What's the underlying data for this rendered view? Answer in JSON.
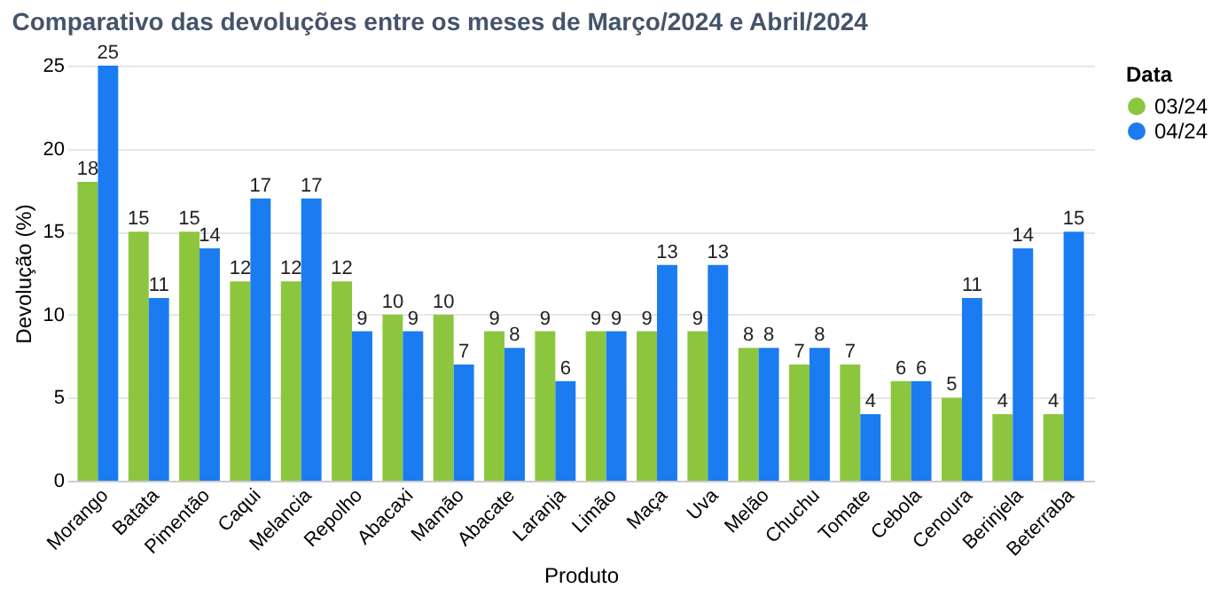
{
  "chart_data": {
    "type": "bar",
    "title": "Comparativo das devoluções entre os meses de Março/2024 e Abril/2024",
    "xlabel": "Produto",
    "ylabel": "Devolução (%)",
    "legend_title": "Data",
    "categories": [
      "Morango",
      "Batata",
      "Pimentão",
      "Caqui",
      "Melancia",
      "Repolho",
      "Abacaxi",
      "Mamão",
      "Abacate",
      "Laranja",
      "Limão",
      "Maça",
      "Uva",
      "Melão",
      "Chuchu",
      "Tomate",
      "Cebola",
      "Cenoura",
      "Berinjela",
      "Beterraba"
    ],
    "series": [
      {
        "name": "03/24",
        "color": "#8cc63f",
        "values": [
          18,
          15,
          15,
          12,
          12,
          12,
          10,
          10,
          9,
          9,
          9,
          9,
          9,
          8,
          7,
          7,
          6,
          5,
          4,
          4
        ]
      },
      {
        "name": "04/24",
        "color": "#1a7cf0",
        "values": [
          25,
          11,
          14,
          17,
          17,
          9,
          9,
          7,
          8,
          6,
          9,
          13,
          13,
          8,
          8,
          4,
          6,
          11,
          14,
          15
        ]
      }
    ],
    "ylim": [
      0,
      25
    ],
    "yticks": [
      0,
      5,
      10,
      15,
      20,
      25
    ],
    "grid": "y",
    "legend": "top right",
    "data_labels": true
  }
}
